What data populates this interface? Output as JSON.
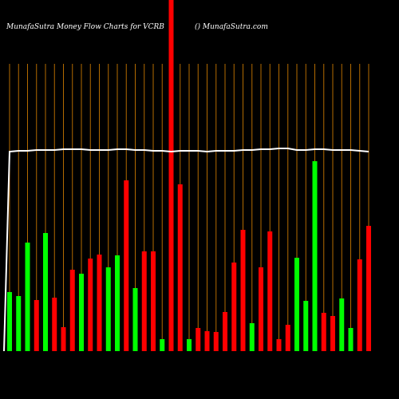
{
  "chart_data": {
    "type": "bar",
    "title": "MunafaSutra  Money Flow  Charts for VCRB",
    "subtitle": "() MunafaSutra.com",
    "values": [
      74,
      69,
      136,
      64,
      148,
      67,
      30,
      102,
      97,
      116,
      121,
      105,
      120,
      214,
      79,
      125,
      125,
      15,
      440,
      209,
      15,
      29,
      25,
      24,
      49,
      111,
      152,
      35,
      105,
      150,
      15,
      33,
      117,
      63,
      238,
      48,
      44,
      66,
      29,
      115,
      157
    ],
    "colors": [
      "#00ff00",
      "#00ff00",
      "#00ff00",
      "#ff0000",
      "#00ff00",
      "#ff0000",
      "#ff0000",
      "#ff0000",
      "#00ff00",
      "#ff0000",
      "#ff0000",
      "#00ff00",
      "#00ff00",
      "#ff0000",
      "#00ff00",
      "#ff0000",
      "#ff0000",
      "#00ff00",
      "#ff0000",
      "#ff0000",
      "#00ff00",
      "#ff0000",
      "#ff0000",
      "#ff0000",
      "#ff0000",
      "#ff0000",
      "#ff0000",
      "#00ff00",
      "#ff0000",
      "#ff0000",
      "#ff0000",
      "#ff0000",
      "#00ff00",
      "#00ff00",
      "#00ff00",
      "#ff0000",
      "#ff0000",
      "#00ff00",
      "#00ff00",
      "#ff0000",
      "#ff0000"
    ],
    "line": {
      "color": "#ffffff",
      "values": [
        250,
        251,
        251,
        252,
        252,
        252,
        253,
        253,
        253,
        252,
        252,
        252,
        253,
        253,
        252,
        252,
        251,
        251,
        250,
        251,
        251,
        251,
        250,
        251,
        251,
        251,
        252,
        252,
        253,
        253,
        254,
        254,
        252,
        252,
        253,
        253,
        252,
        252,
        252,
        251,
        250
      ]
    },
    "ylim": [
      0,
      440
    ]
  }
}
